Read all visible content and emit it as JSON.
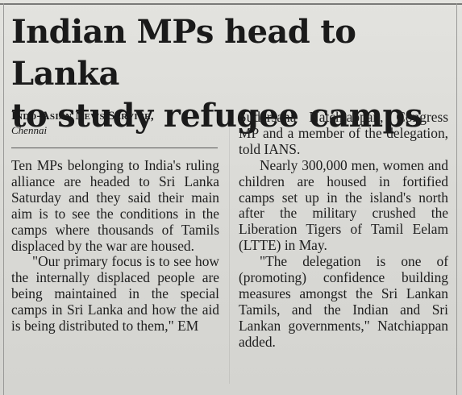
{
  "article": {
    "headline_line1": "Indian MPs head to Lanka",
    "headline_line2": "to study refugee camps",
    "agency": "Indo-Asian News Service,",
    "dateline": "Chennai",
    "col1_p1": "Ten MPs belonging to India's ruling alliance are headed to Sri Lanka Saturday and they said their main aim is to see the conditions in the camps where thousands of Tamils displaced by the war are housed.",
    "col1_p2": "\"Our primary focus is to see how the internally displaced people are being maintained in the special camps in Sri Lanka and how the aid is being distributed to them,\" EM",
    "col2_p1": "Sudarsana Natchiappan, Congress MP and a member of the delegation, told IANS.",
    "col2_p2": "Nearly 300,000 men, women and children are housed in fortified camps set up in the island's north after the military crushed the Liberation Tigers of Tamil Eelam (LTTE) in May.",
    "col2_p3": "\"The delegation is one of (promoting) confidence building measures amongst the Sri Lankan Tamils, and the Indian and Sri Lankan governments,\" Natchiappan added."
  }
}
